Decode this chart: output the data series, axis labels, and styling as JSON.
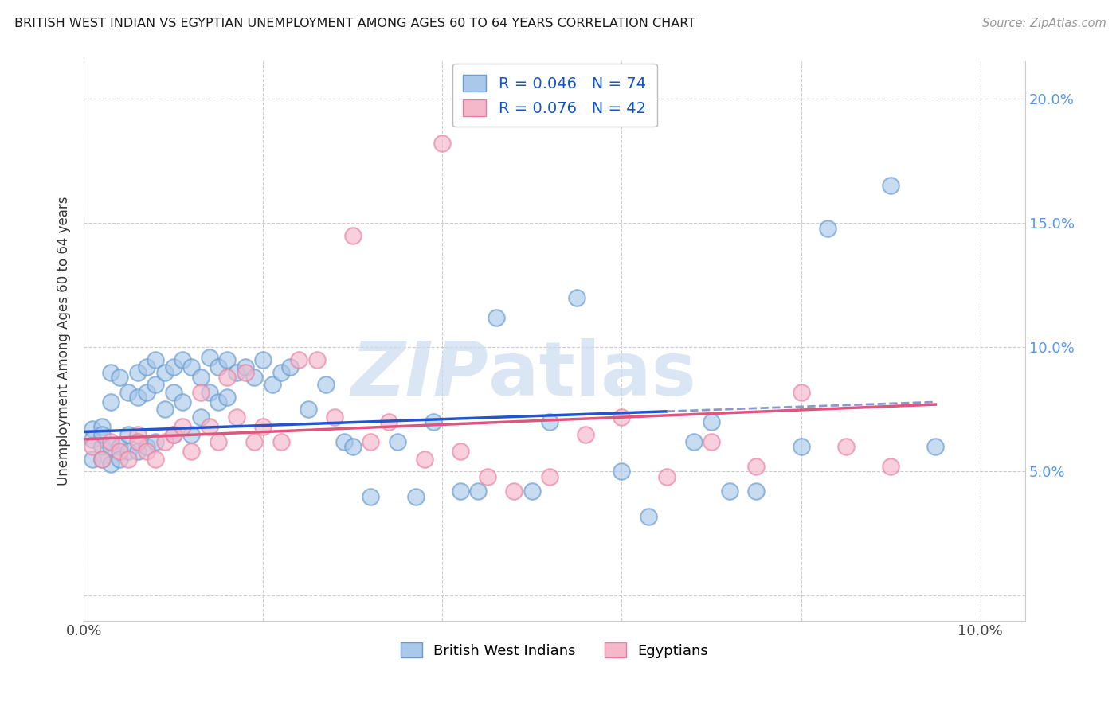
{
  "title": "BRITISH WEST INDIAN VS EGYPTIAN UNEMPLOYMENT AMONG AGES 60 TO 64 YEARS CORRELATION CHART",
  "source": "Source: ZipAtlas.com",
  "ylabel": "Unemployment Among Ages 60 to 64 years",
  "xlim": [
    0.0,
    0.105
  ],
  "ylim": [
    -0.01,
    0.215
  ],
  "legend1_r": "R = 0.046",
  "legend1_n": "N = 74",
  "legend2_r": "R = 0.076",
  "legend2_n": "N = 42",
  "bwi_color": "#aac8ea",
  "egy_color": "#f5b8cb",
  "bwi_edge_color": "#6699cc",
  "egy_edge_color": "#e87fa0",
  "trend_bwi_color": "#2255cc",
  "trend_egy_color": "#e05580",
  "watermark_color": "#ccdcf0",
  "bwi_x": [
    0.001,
    0.001,
    0.001,
    0.002,
    0.002,
    0.002,
    0.002,
    0.003,
    0.003,
    0.003,
    0.003,
    0.004,
    0.004,
    0.004,
    0.005,
    0.005,
    0.005,
    0.006,
    0.006,
    0.006,
    0.007,
    0.007,
    0.007,
    0.008,
    0.008,
    0.008,
    0.009,
    0.009,
    0.01,
    0.01,
    0.01,
    0.011,
    0.011,
    0.012,
    0.012,
    0.013,
    0.013,
    0.014,
    0.014,
    0.015,
    0.015,
    0.016,
    0.016,
    0.017,
    0.018,
    0.019,
    0.02,
    0.021,
    0.022,
    0.023,
    0.025,
    0.027,
    0.029,
    0.03,
    0.032,
    0.035,
    0.037,
    0.039,
    0.042,
    0.044,
    0.046,
    0.05,
    0.052,
    0.055,
    0.06,
    0.063,
    0.068,
    0.07,
    0.072,
    0.075,
    0.08,
    0.083,
    0.09,
    0.095
  ],
  "bwi_y": [
    0.067,
    0.063,
    0.055,
    0.068,
    0.065,
    0.06,
    0.055,
    0.09,
    0.078,
    0.06,
    0.053,
    0.088,
    0.06,
    0.055,
    0.082,
    0.065,
    0.058,
    0.09,
    0.08,
    0.058,
    0.092,
    0.082,
    0.06,
    0.095,
    0.085,
    0.062,
    0.09,
    0.075,
    0.092,
    0.082,
    0.065,
    0.095,
    0.078,
    0.092,
    0.065,
    0.088,
    0.072,
    0.096,
    0.082,
    0.092,
    0.078,
    0.095,
    0.08,
    0.09,
    0.092,
    0.088,
    0.095,
    0.085,
    0.09,
    0.092,
    0.075,
    0.085,
    0.062,
    0.06,
    0.04,
    0.062,
    0.04,
    0.07,
    0.042,
    0.042,
    0.112,
    0.042,
    0.07,
    0.12,
    0.05,
    0.032,
    0.062,
    0.07,
    0.042,
    0.042,
    0.06,
    0.148,
    0.165,
    0.06
  ],
  "egy_x": [
    0.001,
    0.002,
    0.003,
    0.004,
    0.005,
    0.006,
    0.006,
    0.007,
    0.008,
    0.009,
    0.01,
    0.011,
    0.012,
    0.013,
    0.014,
    0.015,
    0.016,
    0.017,
    0.018,
    0.019,
    0.02,
    0.022,
    0.024,
    0.026,
    0.028,
    0.03,
    0.032,
    0.034,
    0.038,
    0.04,
    0.042,
    0.045,
    0.048,
    0.052,
    0.056,
    0.06,
    0.065,
    0.07,
    0.075,
    0.08,
    0.085,
    0.09
  ],
  "egy_y": [
    0.06,
    0.055,
    0.062,
    0.058,
    0.055,
    0.065,
    0.062,
    0.058,
    0.055,
    0.062,
    0.065,
    0.068,
    0.058,
    0.082,
    0.068,
    0.062,
    0.088,
    0.072,
    0.09,
    0.062,
    0.068,
    0.062,
    0.095,
    0.095,
    0.072,
    0.145,
    0.062,
    0.07,
    0.055,
    0.182,
    0.058,
    0.048,
    0.042,
    0.048,
    0.065,
    0.072,
    0.048,
    0.062,
    0.052,
    0.082,
    0.06,
    0.052
  ],
  "bwi_trend_x0": 0.0,
  "bwi_trend_x1": 0.095,
  "bwi_trend_y0": 0.066,
  "bwi_trend_y1": 0.078,
  "egy_trend_x0": 0.0,
  "egy_trend_x1": 0.095,
  "egy_trend_y0": 0.063,
  "egy_trend_y1": 0.077
}
